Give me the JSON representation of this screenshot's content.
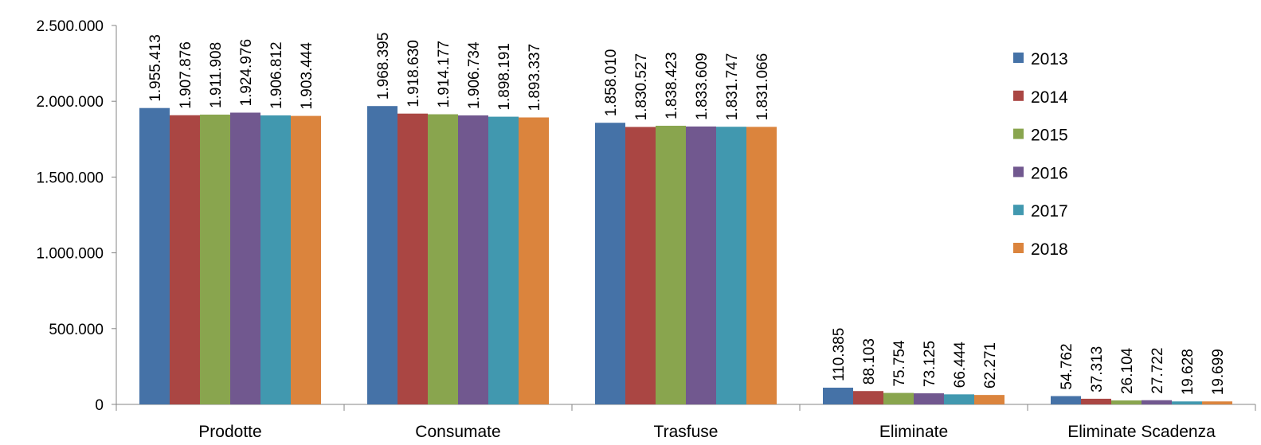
{
  "chart_data": {
    "type": "bar",
    "title": "",
    "xlabel": "",
    "ylabel": "",
    "ylim": [
      0,
      2500000
    ],
    "yticks": [
      0,
      500000,
      1000000,
      1500000,
      2000000,
      2500000
    ],
    "ytick_labels": [
      "0",
      "500.000",
      "1.000.000",
      "1.500.000",
      "2.000.000",
      "2.500.000"
    ],
    "grid": false,
    "legend_position": "right",
    "categories": [
      "Prodotte",
      "Consumate",
      "Trasfuse",
      "Eliminate",
      "Eliminate Scadenza"
    ],
    "series": [
      {
        "name": "2013",
        "color": "#4572A7",
        "values": [
          1955413,
          1968395,
          1858010,
          110385,
          54762
        ],
        "labels": [
          "1.955.413",
          "1.968.395",
          "1.858.010",
          "110.385",
          "54.762"
        ]
      },
      {
        "name": "2014",
        "color": "#AA4643",
        "values": [
          1907876,
          1918630,
          1830527,
          88103,
          37313
        ],
        "labels": [
          "1.907.876",
          "1.918.630",
          "1.830.527",
          "88.103",
          "37.313"
        ]
      },
      {
        "name": "2015",
        "color": "#89A54E",
        "values": [
          1911908,
          1914177,
          1838423,
          75754,
          26104
        ],
        "labels": [
          "1.911.908",
          "1.914.177",
          "1.838.423",
          "75.754",
          "26.104"
        ]
      },
      {
        "name": "2016",
        "color": "#71588F",
        "values": [
          1924976,
          1906734,
          1833609,
          73125,
          27722
        ],
        "labels": [
          "1.924.976",
          "1.906.734",
          "1.833.609",
          "73.125",
          "27.722"
        ]
      },
      {
        "name": "2017",
        "color": "#4198AF",
        "values": [
          1906812,
          1898191,
          1831747,
          66444,
          19628
        ],
        "labels": [
          "1.906.812",
          "1.898.191",
          "1.831.747",
          "66.444",
          "19.628"
        ]
      },
      {
        "name": "2018",
        "color": "#DB843D",
        "values": [
          1903444,
          1893337,
          1831066,
          62271,
          19699
        ],
        "labels": [
          "1.903.444",
          "1.893.337",
          "1.831.066",
          "62.271",
          "19.699"
        ]
      }
    ]
  }
}
